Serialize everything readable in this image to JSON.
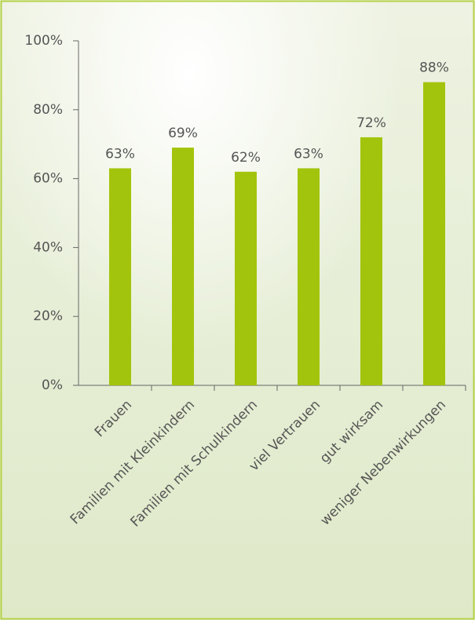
{
  "chart_data": {
    "type": "bar",
    "categories": [
      "Frauen",
      "Familien mit Kleinkindern",
      "Familien mit Schulkindern",
      "viel Vertrauen",
      "gut wirksam",
      "weniger Nebenwirkungen"
    ],
    "values": [
      63,
      69,
      62,
      63,
      72,
      88
    ],
    "value_labels": [
      "63%",
      "69%",
      "62%",
      "63%",
      "72%",
      "88%"
    ],
    "color": "#a3c40c",
    "ylim": [
      0,
      100
    ],
    "yticks": [
      {
        "value": 0,
        "label": "0%"
      },
      {
        "value": 20,
        "label": "20%"
      },
      {
        "value": 40,
        "label": "40%"
      },
      {
        "value": 60,
        "label": "60%"
      },
      {
        "value": 80,
        "label": "80%"
      },
      {
        "value": 100,
        "label": "100%"
      }
    ]
  }
}
